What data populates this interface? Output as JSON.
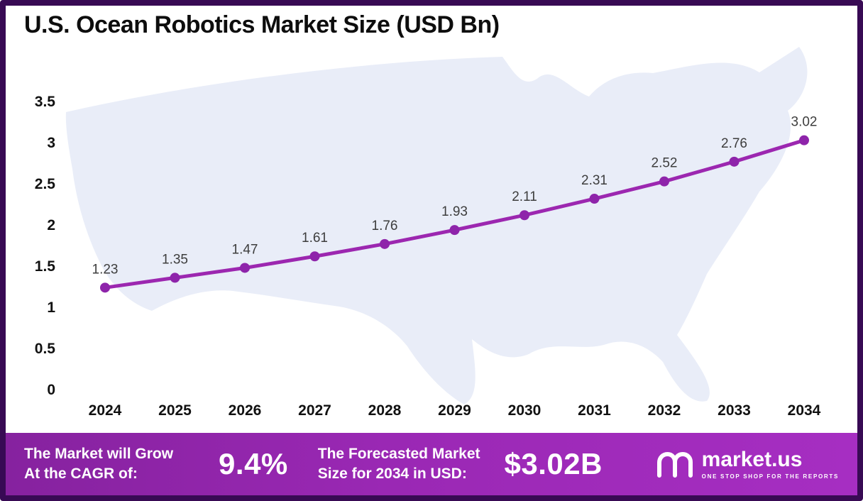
{
  "title": "U.S. Ocean Robotics Market Size (USD Bn)",
  "chart_data": {
    "type": "line",
    "title": "U.S. Ocean Robotics Market Size (USD Bn)",
    "categories": [
      "2024",
      "2025",
      "2026",
      "2027",
      "2028",
      "2029",
      "2030",
      "2031",
      "2032",
      "2033",
      "2034"
    ],
    "values": [
      1.23,
      1.35,
      1.47,
      1.61,
      1.76,
      1.93,
      2.11,
      2.31,
      2.52,
      2.76,
      3.02
    ],
    "xlabel": "",
    "ylabel": "",
    "ylim": [
      0,
      3.5
    ],
    "yticks": [
      0,
      0.5,
      1,
      1.5,
      2,
      2.5,
      3,
      3.5
    ],
    "grid": false,
    "legend": "none",
    "line_color": "#9c27b0",
    "marker_color": "#8e24aa",
    "label_color": "#3d3d3d",
    "background_map": "United States silhouette"
  },
  "banner": {
    "cagr_label_line1": "The Market will Grow",
    "cagr_label_line2": "At the CAGR of:",
    "cagr_value": "9.4%",
    "forecast_label_line1": "The Forecasted Market",
    "forecast_label_line2": "Size for 2034 in USD:",
    "forecast_value": "$3.02B",
    "brand_name": "market.us",
    "brand_tagline": "ONE STOP SHOP FOR THE REPORTS",
    "gradient_start": "#86229f",
    "gradient_end": "#a62ec2"
  },
  "frame_color": "#380a54"
}
